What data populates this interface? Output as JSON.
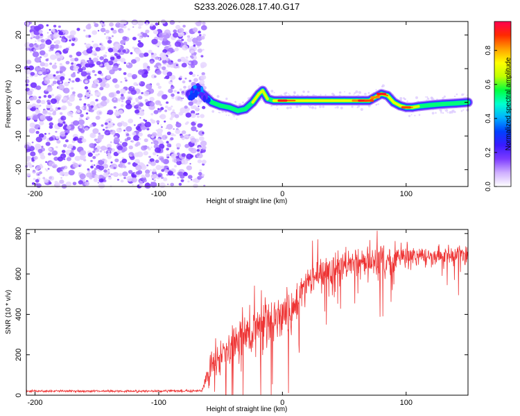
{
  "title": "S233.2026.028.17.40.G17",
  "colors": {
    "frame": "#000000",
    "snr_line": "#ee3333",
    "noise": "#7a3cff",
    "colormap": [
      "#ffffff",
      "#d0b0ff",
      "#7d3cff",
      "#3a1aff",
      "#0040ff",
      "#00b0ff",
      "#00ffd0",
      "#00ff40",
      "#c0ff00",
      "#ffff00",
      "#ffa000",
      "#ff2a00",
      "#ff0050"
    ]
  },
  "chart_data": [
    {
      "type": "heatmap",
      "name": "spectrogram",
      "xlabel": "Height of straight line (km)",
      "ylabel": "Frequency (Hz)",
      "xlim": [
        -207,
        150
      ],
      "ylim": [
        -25,
        24
      ],
      "xticks": [
        -200,
        -100,
        0,
        100
      ],
      "xtick_labels": [
        "-200",
        "-100",
        "0",
        "100"
      ],
      "yticks": [
        -20,
        -10,
        0,
        10,
        20
      ],
      "ytick_labels": [
        "-20",
        "-10",
        "0",
        "10",
        "20"
      ],
      "noise_region": {
        "x_from": -207,
        "x_to": -63,
        "density": "high"
      },
      "ridge": {
        "x": [
          -75,
          -68,
          -63,
          -57,
          -50,
          -43,
          -36,
          -30,
          -24,
          -19,
          -16,
          -12,
          -7,
          0,
          10,
          20,
          30,
          40,
          50,
          60,
          65,
          70,
          75,
          80,
          85,
          90,
          95,
          100,
          105,
          110,
          120,
          130,
          140,
          150
        ],
        "freq": [
          2.5,
          3.5,
          2,
          0,
          -1,
          -1.5,
          -2.5,
          -2,
          0,
          2.5,
          3.5,
          1,
          0.5,
          0.5,
          0.5,
          0.5,
          0.5,
          0.5,
          0.5,
          0.5,
          0.5,
          0.5,
          1.5,
          2.5,
          2,
          0,
          -1,
          -1.5,
          -1.5,
          -1.2,
          -0.8,
          -0.5,
          -0.3,
          0
        ],
        "amplitude": [
          0.3,
          0.35,
          0.4,
          0.6,
          0.5,
          0.7,
          0.5,
          0.6,
          0.7,
          0.75,
          0.8,
          0.6,
          0.7,
          0.95,
          0.8,
          0.75,
          0.7,
          0.75,
          0.8,
          0.85,
          0.95,
          0.9,
          0.85,
          0.95,
          0.8,
          0.7,
          0.75,
          0.9,
          0.8,
          0.6,
          0.6,
          0.55,
          0.55,
          0.6
        ]
      }
    },
    {
      "type": "colorbar",
      "label": "Normalized spectral amplitude",
      "range": [
        0,
        0.97
      ],
      "ticks": [
        0,
        0.2,
        0.4,
        0.6,
        0.8
      ],
      "tick_labels": [
        "0.0",
        "0.2",
        "0.4",
        "0.6",
        "0.8"
      ]
    },
    {
      "type": "line",
      "name": "snr",
      "xlabel": "Height of straight line (km)",
      "ylabel": "SNR (10 * v/v)",
      "xlim": [
        -207,
        150
      ],
      "ylim": [
        0,
        820
      ],
      "xticks": [
        -200,
        -100,
        0,
        100
      ],
      "xtick_labels": [
        "-200",
        "-100",
        "0",
        "100"
      ],
      "yticks": [
        0,
        200,
        400,
        600,
        800
      ],
      "ytick_labels": [
        "0",
        "200",
        "400",
        "600",
        "800"
      ],
      "trend": {
        "x": [
          -207,
          -100,
          -65,
          -60,
          -55,
          -50,
          -40,
          -30,
          -20,
          -10,
          0,
          10,
          20,
          30,
          40,
          50,
          60,
          70,
          80,
          90,
          100,
          110,
          120,
          130,
          140,
          150
        ],
        "mean": [
          20,
          20,
          22,
          120,
          180,
          200,
          240,
          290,
          340,
          360,
          390,
          420,
          560,
          600,
          620,
          640,
          650,
          660,
          670,
          670,
          680,
          690,
          690,
          690,
          690,
          695
        ],
        "spread": [
          6,
          6,
          8,
          80,
          120,
          110,
          120,
          130,
          140,
          140,
          130,
          130,
          90,
          90,
          90,
          90,
          90,
          90,
          90,
          80,
          70,
          60,
          55,
          55,
          55,
          55
        ]
      }
    }
  ]
}
